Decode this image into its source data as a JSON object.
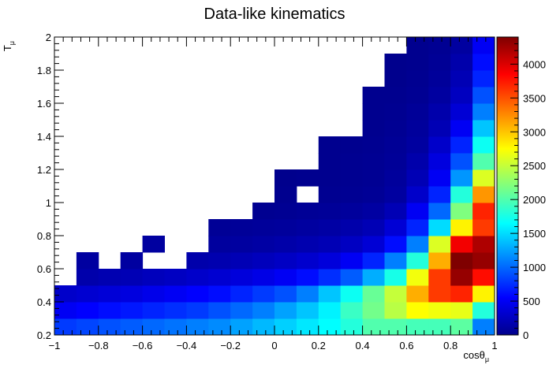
{
  "chart_data": {
    "type": "heatmap",
    "title": "Data-like kinematics",
    "xlabel": "cosθ",
    "xlabel_sub": "μ",
    "ylabel": "T",
    "ylabel_sub": "μ",
    "xlim": [
      -1,
      1
    ],
    "ylim": [
      0.2,
      2
    ],
    "x_ticks": [
      -1,
      -0.8,
      -0.6,
      -0.4,
      -0.2,
      0,
      0.2,
      0.4,
      0.6,
      0.8,
      1
    ],
    "x_tick_labels": [
      "−1",
      "−0.8",
      "−0.6",
      "−0.4",
      "−0.2",
      "0",
      "0.2",
      "0.4",
      "0.6",
      "0.8",
      "1"
    ],
    "y_ticks": [
      0.2,
      0.4,
      0.6,
      0.8,
      1,
      1.2,
      1.4,
      1.6,
      1.8,
      2
    ],
    "y_tick_labels": [
      "0.2",
      "0.4",
      "0.6",
      "0.8",
      "1",
      "1.2",
      "1.4",
      "1.6",
      "1.8",
      "2"
    ],
    "x_bin_edges": [
      -1,
      -0.9,
      -0.8,
      -0.7,
      -0.6,
      -0.5,
      -0.4,
      -0.3,
      -0.2,
      -0.1,
      0,
      0.1,
      0.2,
      0.3,
      0.4,
      0.5,
      0.6,
      0.7,
      0.8,
      0.9,
      1
    ],
    "y_bin_edges": [
      0.2,
      0.3,
      0.4,
      0.5,
      0.6,
      0.7,
      0.8,
      0.9,
      1.0,
      1.1,
      1.2,
      1.3,
      1.4,
      1.5,
      1.6,
      1.7,
      1.8,
      1.9,
      2.0
    ],
    "zlim": [
      0,
      4400
    ],
    "z_ticks": [
      0,
      500,
      1000,
      1500,
      2000,
      2500,
      3000,
      3500,
      4000
    ],
    "z_tick_labels": [
      "0",
      "500",
      "1000",
      "1500",
      "2000",
      "2500",
      "3000",
      "3500",
      "4000"
    ],
    "values": [
      [
        800,
        850,
        900,
        950,
        1000,
        1050,
        1100,
        1150,
        1250,
        1350,
        1450,
        1550,
        1650,
        1800,
        2000,
        2000,
        1950,
        1950,
        2050,
        1100
      ],
      [
        500,
        550,
        600,
        650,
        700,
        750,
        800,
        900,
        1000,
        1100,
        1250,
        1400,
        1600,
        1900,
        2150,
        2450,
        2750,
        2700,
        2650,
        1800
      ],
      [
        300,
        330,
        360,
        400,
        450,
        500,
        550,
        600,
        700,
        800,
        900,
        1100,
        1400,
        1700,
        2100,
        2500,
        3100,
        3600,
        3700,
        2800
      ],
      [
        0,
        150,
        180,
        200,
        230,
        260,
        300,
        330,
        380,
        430,
        500,
        600,
        750,
        950,
        1300,
        1750,
        2700,
        3600,
        4300,
        3800
      ],
      [
        0,
        100,
        0,
        100,
        0,
        0,
        150,
        170,
        200,
        230,
        270,
        320,
        380,
        500,
        700,
        1100,
        1800,
        3100,
        4400,
        4300
      ],
      [
        0,
        0,
        0,
        0,
        100,
        0,
        0,
        90,
        100,
        120,
        140,
        170,
        200,
        260,
        350,
        600,
        1100,
        2600,
        3900,
        4200
      ],
      [
        0,
        0,
        0,
        0,
        0,
        0,
        0,
        50,
        60,
        70,
        80,
        100,
        120,
        150,
        200,
        350,
        700,
        1500,
        2800,
        3600
      ],
      [
        0,
        0,
        0,
        0,
        0,
        0,
        0,
        0,
        0,
        30,
        40,
        50,
        60,
        80,
        110,
        200,
        500,
        1000,
        2200,
        3700
      ],
      [
        0,
        0,
        0,
        0,
        0,
        0,
        0,
        0,
        0,
        0,
        20,
        0,
        30,
        40,
        50,
        100,
        300,
        700,
        1800,
        3200
      ],
      [
        0,
        0,
        0,
        0,
        0,
        0,
        0,
        0,
        0,
        0,
        10,
        20,
        20,
        30,
        40,
        80,
        200,
        500,
        1200,
        2600
      ],
      [
        0,
        0,
        0,
        0,
        0,
        0,
        0,
        0,
        0,
        0,
        0,
        0,
        20,
        30,
        40,
        60,
        150,
        400,
        900,
        2000
      ],
      [
        0,
        0,
        0,
        0,
        0,
        0,
        0,
        0,
        0,
        0,
        0,
        0,
        20,
        20,
        30,
        50,
        100,
        300,
        700,
        1700
      ],
      [
        0,
        0,
        0,
        0,
        0,
        0,
        0,
        0,
        0,
        0,
        0,
        0,
        0,
        0,
        20,
        40,
        80,
        200,
        500,
        1400
      ],
      [
        0,
        0,
        0,
        0,
        0,
        0,
        0,
        0,
        0,
        0,
        0,
        0,
        0,
        0,
        20,
        30,
        60,
        150,
        350,
        1100
      ],
      [
        0,
        0,
        0,
        0,
        0,
        0,
        0,
        0,
        0,
        0,
        0,
        0,
        0,
        0,
        20,
        20,
        40,
        100,
        250,
        900
      ],
      [
        0,
        0,
        0,
        0,
        0,
        0,
        0,
        0,
        0,
        0,
        0,
        0,
        0,
        0,
        0,
        10,
        30,
        70,
        200,
        700
      ],
      [
        0,
        0,
        0,
        0,
        0,
        0,
        0,
        0,
        0,
        0,
        0,
        0,
        0,
        0,
        0,
        10,
        20,
        50,
        150,
        600
      ],
      [
        0,
        0,
        0,
        0,
        0,
        0,
        0,
        0,
        0,
        0,
        0,
        0,
        0,
        0,
        0,
        0,
        20,
        40,
        100,
        500
      ]
    ],
    "colormap": [
      "#00008b",
      "#0000ff",
      "#007fff",
      "#00ffff",
      "#7fff7f",
      "#ffff00",
      "#ff7f00",
      "#ff0000",
      "#7f0000"
    ],
    "grid": false,
    "legend": "colorbar-right"
  }
}
